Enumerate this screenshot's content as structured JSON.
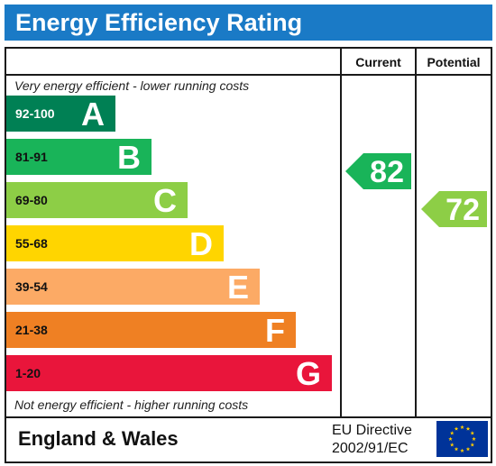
{
  "title": "Energy Efficiency Rating",
  "columns": {
    "current": "Current",
    "potential": "Potential"
  },
  "notes": {
    "top": "Very energy efficient - lower running costs",
    "bottom": "Not energy efficient - higher running costs"
  },
  "footer": {
    "region": "England & Wales",
    "directive_line1": "EU Directive",
    "directive_line2": "2002/91/EC"
  },
  "chart_data": {
    "type": "bar",
    "title": "Energy Efficiency Rating",
    "bands": [
      {
        "range": "92-100",
        "letter": "A",
        "color": "#008054"
      },
      {
        "range": "81-91",
        "letter": "B",
        "color": "#19b459"
      },
      {
        "range": "69-80",
        "letter": "C",
        "color": "#8dce46"
      },
      {
        "range": "55-68",
        "letter": "D",
        "color": "#ffd500"
      },
      {
        "range": "39-54",
        "letter": "E",
        "color": "#fcaa65"
      },
      {
        "range": "21-38",
        "letter": "F",
        "color": "#ef8023"
      },
      {
        "range": "1-20",
        "letter": "G",
        "color": "#e9153b"
      }
    ],
    "current": {
      "value": "82",
      "band": "B",
      "color": "#19b459"
    },
    "potential": {
      "value": "72",
      "band": "C",
      "color": "#8dce46"
    }
  }
}
